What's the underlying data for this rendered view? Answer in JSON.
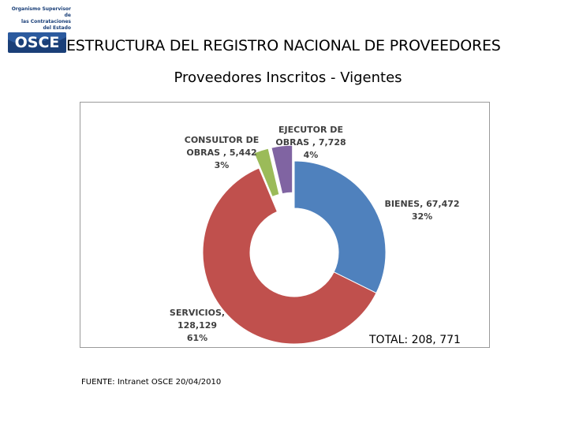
{
  "logo": {
    "org_lines": [
      "Organismo Supervisor de",
      "las Contrataciones",
      "del Estado"
    ],
    "wordmark": "OSCE",
    "color": "#1a3f78"
  },
  "title": "ESTRUCTURA DEL REGISTRO NACIONAL DE PROVEEDORES",
  "subtitle": "Proveedores Inscritos - Vigentes",
  "total": "TOTAL: 208, 771",
  "source": "FUENTE: Intranet OSCE 20/04/2010",
  "chart_data": {
    "type": "pie",
    "variant": "exploded-doughnut",
    "title": "Proveedores Inscritos - Vigentes",
    "grid": false,
    "legend": "none",
    "total": 208771,
    "slices": [
      {
        "name": "BIENES",
        "value": 67472,
        "percent": 32,
        "color": "#4f81bd",
        "label_lines": [
          "BIENES, 67,472",
          "32%"
        ]
      },
      {
        "name": "SERVICIOS",
        "value": 128129,
        "percent": 61,
        "color": "#c0504d",
        "label_lines": [
          "SERVICIOS,",
          "128,129",
          "61%"
        ]
      },
      {
        "name": "CONSULTOR DE OBRAS",
        "value": 5442,
        "percent": 3,
        "color": "#9bbb59",
        "label_lines": [
          "CONSULTOR DE",
          "OBRAS , 5,442",
          "3%"
        ]
      },
      {
        "name": "EJECUTOR DE OBRAS",
        "value": 7728,
        "percent": 4,
        "color": "#8064a2",
        "label_lines": [
          "EJECUTOR  DE",
          "OBRAS , 7,728",
          "4%"
        ]
      }
    ]
  }
}
